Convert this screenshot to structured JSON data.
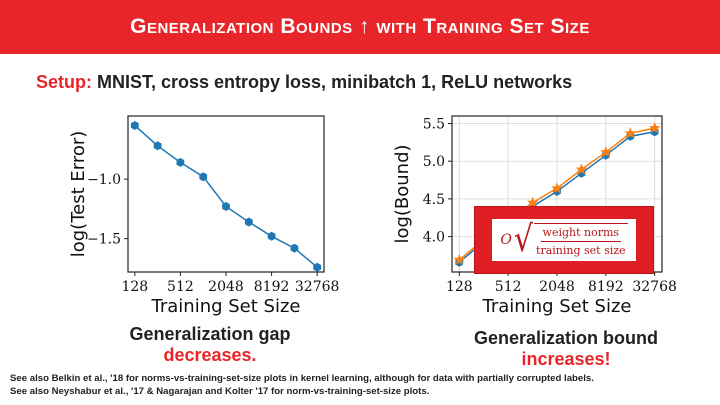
{
  "slide": {
    "title": "Generalization Bounds ↑ with Training Set Size",
    "setup_label": "Setup:",
    "setup_text": " MNIST, cross entropy loss, minibatch 1, ReLU networks",
    "formula": {
      "symbol": "O",
      "numerator": "weight norms",
      "denominator": "training set size"
    },
    "caption_left": {
      "line1": "Generalization gap",
      "line2": "decreases."
    },
    "caption_right": {
      "line1": "Generalization bound",
      "line2": "increases!"
    },
    "footnotes": [
      "See also Belkin et al., '18 for norms-vs-training-set-size plots in kernel learning, although for data with partially corrupted labels.",
      "See also Neyshabur et al., '17 & Nagarajan and Kolter '17 for norm-vs-training-set-size plots."
    ],
    "colors": {
      "accent": "#e8262a",
      "series_blue": "#1f77b4",
      "series_orange": "#ff7f0e"
    }
  },
  "chart_data": [
    {
      "type": "line",
      "xlabel": "Training Set Size",
      "ylabel": "log(Test Error)",
      "x_scale": "log2",
      "x_ticks": [
        128,
        512,
        2048,
        8192,
        32768
      ],
      "y_ticks": [
        -1.0,
        -1.5
      ],
      "ylim": [
        -1.78,
        -0.47
      ],
      "grid": false,
      "series": [
        {
          "x": [
            128,
            256,
            512,
            1024,
            2048,
            4096,
            8192,
            16384,
            32768
          ],
          "values": [
            -0.55,
            -0.72,
            -0.86,
            -0.98,
            -1.23,
            -1.36,
            -1.48,
            -1.58,
            -1.74
          ],
          "color": "#1f77b4",
          "marker": "hexagon"
        }
      ]
    },
    {
      "type": "line",
      "xlabel": "Training Set Size",
      "ylabel": "log(Bound)",
      "x_scale": "log2",
      "x_ticks": [
        128,
        512,
        2048,
        8192,
        32768
      ],
      "y_ticks": [
        4.0,
        4.5,
        5.0,
        5.5
      ],
      "ylim": [
        3.53,
        5.6
      ],
      "grid": true,
      "series": [
        {
          "x": [
            128,
            256,
            512,
            1024,
            2048,
            4096,
            8192,
            16384,
            32768
          ],
          "values": [
            3.66,
            3.93,
            4.19,
            4.4,
            4.6,
            4.84,
            5.08,
            5.33,
            5.39
          ],
          "color": "#1f77b4",
          "marker": "hexagon"
        },
        {
          "x": [
            128,
            256,
            512,
            1024,
            2048,
            4096,
            8192,
            16384,
            32768
          ],
          "values": [
            3.69,
            3.96,
            4.22,
            4.45,
            4.64,
            4.89,
            5.12,
            5.37,
            5.44
          ],
          "color": "#ff7f0e",
          "marker": "star"
        }
      ]
    }
  ]
}
